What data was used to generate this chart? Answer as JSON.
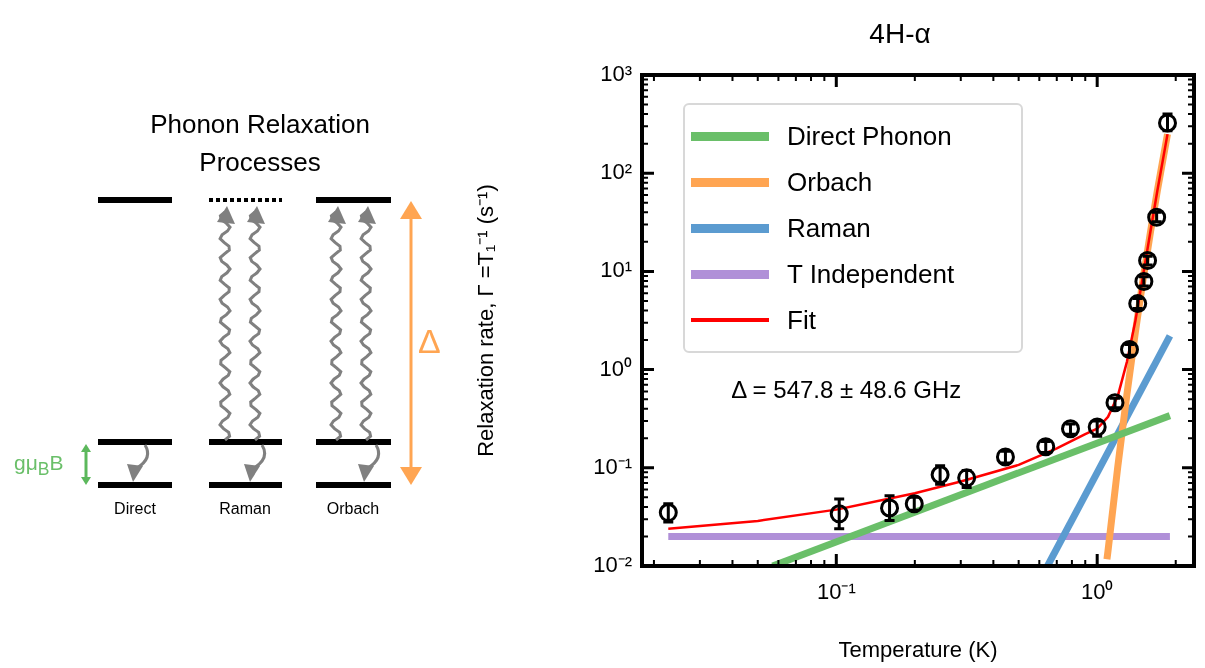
{
  "chart_data": {
    "type": "line",
    "title": "4H-α",
    "xlabel": "Temperature (K)",
    "ylabel": "Relaxation rate, Γ =T₁⁻¹ (s⁻¹)",
    "log": "xy",
    "grid": false,
    "legend": "top left",
    "xlim": [
      0.018,
      2.35
    ],
    "xticks": [
      {
        "value": 0.1,
        "label": "10⁻¹"
      },
      {
        "value": 1,
        "label": "10⁰"
      }
    ],
    "ylim": [
      0.01,
      1000
    ],
    "yticks": [
      {
        "value": 0.01,
        "label": "10⁻²"
      },
      {
        "value": 0.1,
        "label": "10⁻¹"
      },
      {
        "value": 1,
        "label": "10⁰"
      },
      {
        "value": 10,
        "label": "10¹"
      },
      {
        "value": 100,
        "label": "10²"
      },
      {
        "value": 1000,
        "label": "10³"
      }
    ],
    "annotations": [
      "Δ = 547.8 ± 48.6 GHz",
      "Phonon Relaxation Processes",
      "Direct",
      "Raman",
      "Orbach",
      "gμ$_{B}$B",
      "Δ"
    ],
    "series": [
      {
        "name": "Direct Phonon",
        "color": "#6abf69",
        "x": [
          0.057,
          1.9
        ],
        "values": [
          0.01,
          0.34
        ]
      },
      {
        "name": "Orbach",
        "color": "#ffa552",
        "x": [
          1.09,
          1.1,
          1.2,
          1.3,
          1.4,
          1.5,
          1.6,
          1.7,
          1.86
        ],
        "values": [
          0.0117,
          0.0142,
          0.104,
          0.56,
          2.38,
          8.4,
          25,
          66,
          250
        ]
      },
      {
        "name": "Raman",
        "color": "#5b9bd0",
        "x": [
          0.645,
          1.9
        ],
        "values": [
          0.01,
          2.2
        ]
      },
      {
        "name": "T Independent",
        "color": "#b090d8",
        "x": [
          0.0227,
          1.9
        ],
        "values": [
          0.02,
          0.02
        ]
      },
      {
        "name": "Fit",
        "color": "#ff0000",
        "x": [
          0.0227,
          0.05,
          0.1,
          0.2,
          0.3,
          0.5,
          0.7,
          0.9,
          1.0,
          1.1,
          1.2,
          1.3,
          1.4,
          1.5,
          1.6,
          1.7,
          1.86
        ],
        "values": [
          0.024,
          0.0288,
          0.0375,
          0.055,
          0.0725,
          0.107,
          0.158,
          0.22,
          0.25,
          0.33,
          0.54,
          1.2,
          3.1,
          9.2,
          25.5,
          66,
          250
        ]
      },
      {
        "type": "scatter",
        "marker": "circle",
        "color": "#000000",
        "x": [
          0.0227,
          0.1026,
          0.16,
          0.199,
          0.25,
          0.316,
          0.445,
          0.635,
          0.79,
          1.0,
          1.17,
          1.33,
          1.43,
          1.51,
          1.56,
          1.69,
          1.86
        ],
        "values": [
          0.035,
          0.034,
          0.039,
          0.043,
          0.085,
          0.079,
          0.129,
          0.164,
          0.25,
          0.26,
          0.46,
          1.6,
          4.7,
          7.9,
          12.9,
          35.6,
          325
        ],
        "errors": [
          [
            0.028,
            0.043
          ],
          [
            0.024,
            0.048
          ],
          [
            0.029,
            0.052
          ],
          [
            0.037,
            0.05
          ],
          [
            0.068,
            0.105
          ],
          [
            0.063,
            0.094
          ],
          [
            0.112,
            0.147
          ],
          [
            0.143,
            0.185
          ],
          [
            0.22,
            0.28
          ],
          [
            0.21,
            0.3
          ],
          [
            0.41,
            0.51
          ],
          [
            1.4,
            1.8
          ],
          [
            4.2,
            5.3
          ],
          [
            7.1,
            8.8
          ],
          [
            11.6,
            14.3
          ],
          [
            32,
            40
          ],
          [
            270,
            400
          ]
        ]
      }
    ]
  }
}
